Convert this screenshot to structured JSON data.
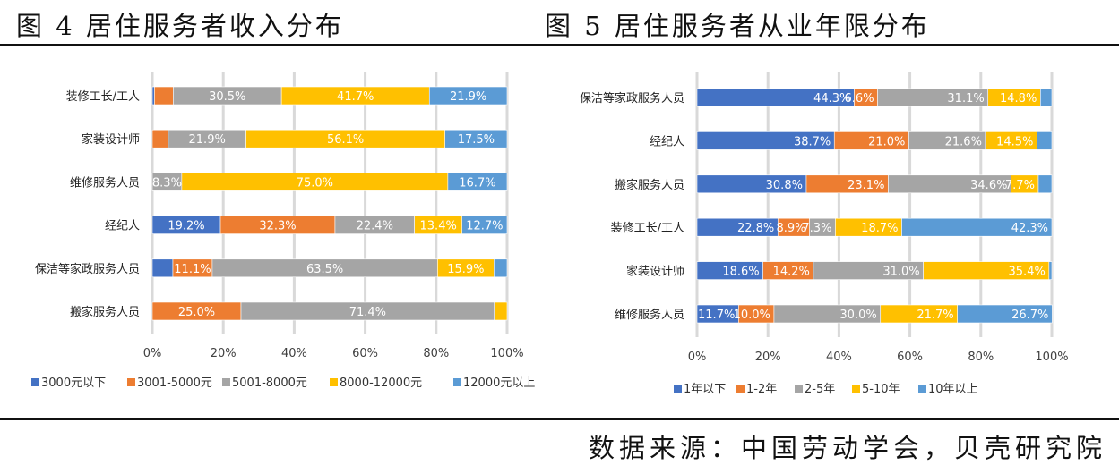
{
  "titles": {
    "left": "图 4 居住服务者收入分布",
    "right": "图 5 居住服务者从业年限分布"
  },
  "source": "数据来源：中国劳动学会，贝壳研究院",
  "chart_data": [
    {
      "type": "bar",
      "orientation": "horizontal",
      "stacked": "percent",
      "title": "图 4 居住服务者收入分布",
      "categories": [
        "装修工长/工人",
        "家装设计师",
        "维修服务人员",
        "经纪人",
        "保洁等家政服务人员",
        "搬家服务人员"
      ],
      "xlim": [
        0,
        100
      ],
      "xticks": [
        "0%",
        "20%",
        "40%",
        "60%",
        "80%",
        "100%"
      ],
      "grid": true,
      "legend_position": "bottom",
      "series": [
        {
          "name": "3000元以下",
          "color": "#4472C4",
          "values": [
            0.6,
            0,
            0,
            19.2,
            5.8,
            0
          ],
          "labels": [
            null,
            null,
            null,
            "19.2%",
            null,
            null
          ]
        },
        {
          "name": "3001-5000元",
          "color": "#ED7D31",
          "values": [
            5.3,
            4.5,
            0,
            32.3,
            11.1,
            25.0
          ],
          "labels": [
            null,
            null,
            null,
            "32.3%",
            "11.1%",
            "25.0%"
          ]
        },
        {
          "name": "5001-8000元",
          "color": "#A5A5A5",
          "values": [
            30.5,
            21.9,
            8.3,
            22.4,
            63.5,
            71.4
          ],
          "labels": [
            "30.5%",
            "21.9%",
            "8.3%",
            "22.4%",
            "63.5%",
            "71.4%"
          ]
        },
        {
          "name": "8000-12000元",
          "color": "#FFC000",
          "values": [
            41.7,
            56.1,
            75.0,
            13.4,
            15.9,
            3.6
          ],
          "labels": [
            "41.7%",
            "56.1%",
            "75.0%",
            "13.4%",
            "15.9%",
            null
          ]
        },
        {
          "name": "12000元以上",
          "color": "#5B9BD5",
          "values": [
            21.9,
            17.5,
            16.7,
            12.7,
            3.7,
            0
          ],
          "labels": [
            "21.9%",
            "17.5%",
            "16.7%",
            "12.7%",
            null,
            null
          ]
        }
      ]
    },
    {
      "type": "bar",
      "orientation": "horizontal",
      "stacked": "percent",
      "title": "图 5 居住服务者从业年限分布",
      "categories": [
        "保洁等家政服务人员",
        "经纪人",
        "搬家服务人员",
        "装修工长/工人",
        "家装设计师",
        "维修服务人员"
      ],
      "xlim": [
        0,
        100
      ],
      "xticks": [
        "0%",
        "20%",
        "40%",
        "60%",
        "80%",
        "100%"
      ],
      "grid": true,
      "legend_position": "bottom",
      "series": [
        {
          "name": "1年以下",
          "color": "#4472C4",
          "values": [
            44.3,
            38.7,
            30.8,
            22.8,
            18.6,
            11.7
          ],
          "labels": [
            "44.3%",
            "38.7%",
            "30.8%",
            "22.8%",
            "18.6%",
            "11.7%"
          ]
        },
        {
          "name": "1-2年",
          "color": "#ED7D31",
          "values": [
            6.6,
            21.0,
            23.1,
            8.9,
            14.2,
            10.0
          ],
          "labels": [
            "6.6%",
            "21.0%",
            "23.1%",
            "8.9%",
            "14.2%",
            "10.0%"
          ]
        },
        {
          "name": "2-5年",
          "color": "#A5A5A5",
          "values": [
            31.1,
            21.6,
            34.6,
            7.3,
            31.0,
            30.0
          ],
          "labels": [
            "31.1%",
            "21.6%",
            "34.6%",
            "7.3%",
            "31.0%",
            "30.0%"
          ]
        },
        {
          "name": "5-10年",
          "color": "#FFC000",
          "values": [
            14.8,
            14.5,
            7.7,
            18.7,
            35.4,
            21.7
          ],
          "labels": [
            "14.8%",
            "14.5%",
            "7.7%",
            "18.7%",
            "35.4%",
            "21.7%"
          ]
        },
        {
          "name": "10年以上",
          "color": "#5B9BD5",
          "values": [
            3.2,
            4.2,
            3.8,
            42.3,
            0.8,
            26.7
          ],
          "labels": [
            null,
            null,
            null,
            "42.3%",
            null,
            "26.7%"
          ]
        }
      ]
    }
  ]
}
